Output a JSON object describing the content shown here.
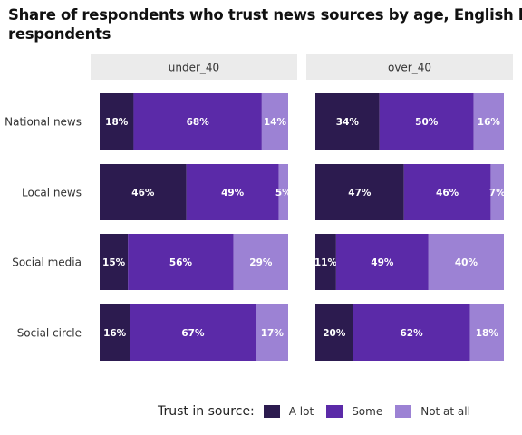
{
  "chart_data": {
    "type": "bar",
    "orientation": "horizontal",
    "stacked": true,
    "title_lines": [
      "Share of respondents who trust news sources by age, English language",
      "respondents"
    ],
    "facets": [
      "under_40",
      "over_40"
    ],
    "categories": [
      "National news",
      "Local news",
      "Social media",
      "Social circle"
    ],
    "xlabel": "",
    "ylabel": "",
    "xlim": [
      0,
      100
    ],
    "grid": false,
    "legend": {
      "title": "Trust in source:",
      "position": "bottom"
    },
    "series": [
      {
        "name": "A lot",
        "color": "#2c1b4f",
        "values": {
          "under_40": [
            18,
            46,
            15,
            16
          ],
          "over_40": [
            34,
            47,
            11,
            20
          ]
        },
        "labels": {
          "under_40": [
            "18%",
            "46%",
            "15%",
            "16%"
          ],
          "over_40": [
            "34%",
            "47%",
            "11%",
            "20%"
          ]
        }
      },
      {
        "name": "Some",
        "color": "#5b2aa8",
        "values": {
          "under_40": [
            68,
            49,
            56,
            67
          ],
          "over_40": [
            50,
            46,
            49,
            62
          ]
        },
        "labels": {
          "under_40": [
            "68%",
            "49%",
            "56%",
            "67%"
          ],
          "over_40": [
            "50%",
            "46%",
            "49%",
            "62%"
          ]
        }
      },
      {
        "name": "Not at all",
        "color": "#9c82d4",
        "values": {
          "under_40": [
            14,
            5,
            29,
            17
          ],
          "over_40": [
            16,
            7,
            40,
            18
          ]
        },
        "labels": {
          "under_40": [
            "14%",
            "5%",
            "29%",
            "17%"
          ],
          "over_40": [
            "16%",
            "7%",
            "40%",
            "18%"
          ]
        }
      }
    ]
  }
}
